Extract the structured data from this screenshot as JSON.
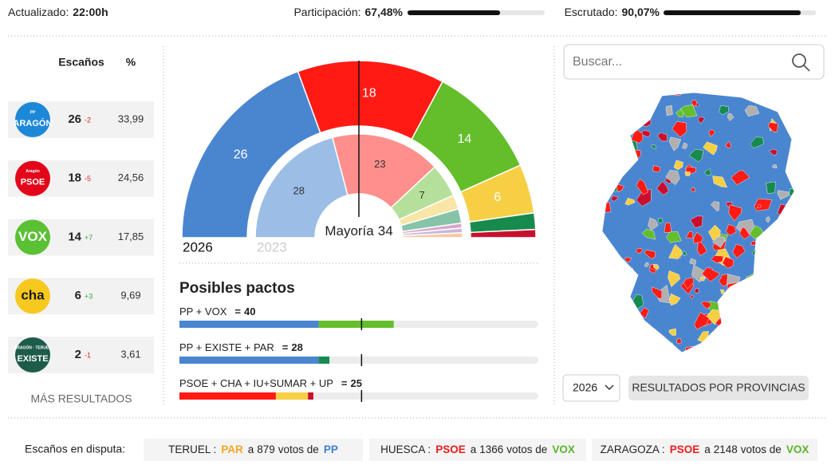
{
  "header": {
    "updated_label": "Actualizado:",
    "updated_time": "22:00h",
    "participation_label": "Participación:",
    "participation": {
      "value": 67.48,
      "label": "67,48%"
    },
    "scrutiny_label": "Escrutado:",
    "scrutiny": {
      "value": 90.07,
      "label": "90,07%"
    }
  },
  "results_table": {
    "columns": [
      "Escaños",
      "%"
    ],
    "rows": [
      {
        "logo": [
          "PP",
          "ARAGÓN"
        ],
        "logo_color": "#1e88d8",
        "logo_text_color": "#ffffff",
        "seats": 26,
        "change": -2,
        "percent": {
          "value": 33.99,
          "label": "33,99"
        }
      },
      {
        "logo": [
          "Aragón",
          "PSOE"
        ],
        "logo_color": "#e3061a",
        "logo_text_color": "#ffffff",
        "seats": 18,
        "change": -5,
        "percent": {
          "value": 24.56,
          "label": "24,56"
        }
      },
      {
        "logo": [
          "VOX"
        ],
        "logo_color": "#5ac034",
        "logo_text_color": "#ffffff",
        "seats": 14,
        "change": {
          "value": 7,
          "label": "+7"
        },
        "percent": {
          "value": 17.85,
          "label": "17,85"
        }
      },
      {
        "logo": [
          "cha"
        ],
        "logo_color": "#f7c81e",
        "logo_text_color": "#1a1a1a",
        "seats": 6,
        "change": {
          "value": 3,
          "label": "+3"
        },
        "percent": {
          "value": 9.69,
          "label": "9,69"
        }
      },
      {
        "logo": [
          "ARAGÓN · TERUEL",
          "EXISTE"
        ],
        "logo_color": "#1d5b4a",
        "logo_text_color": "#ffffff",
        "seats": 2,
        "change": -1,
        "percent": {
          "value": 3.61,
          "label": "3,61"
        }
      }
    ],
    "more": "MÁS RESULTADOS"
  },
  "hemicycle": {
    "majority_label": "Mayoría",
    "majority": 34,
    "rings": [
      {
        "year": "2026",
        "values": [
          26,
          18,
          14,
          6,
          2,
          1
        ],
        "colors": [
          "#4a86d0",
          "#ff1b14",
          "#63be2a",
          "#f6cf45",
          "#178a4d",
          "#c8102e"
        ]
      },
      {
        "year": "2023",
        "values": [
          28,
          23,
          7,
          3,
          3,
          1,
          1,
          1
        ],
        "colors": [
          "#9bbde6",
          "#ff8f8c",
          "#b5e09b",
          "#f7e6a6",
          "#86c3a9",
          "#d9a6c9",
          "#c9b6de",
          "#f7c9a0"
        ]
      }
    ]
  },
  "pacts": {
    "title": "Posibles pactos",
    "equals": "=",
    "items": [
      {
        "label": "PP + VOX",
        "total": 40,
        "segments": [
          {
            "value": 26,
            "color": "#4a86d0"
          },
          {
            "value": 14,
            "color": "#63be2a"
          }
        ]
      },
      {
        "label": "PP + EXISTE + PAR",
        "total": 28,
        "segments": [
          {
            "value": 26,
            "color": "#4a86d0"
          },
          {
            "value": 2,
            "color": "#178a4d"
          }
        ]
      },
      {
        "label": "PSOE + CHA + IU+SUMAR + UP",
        "total": 25,
        "segments": [
          {
            "value": 18,
            "color": "#ff1b14"
          },
          {
            "value": 6,
            "color": "#f6cf45"
          },
          {
            "value": 1,
            "color": "#c8102e"
          }
        ]
      }
    ]
  },
  "search": {
    "placeholder": "Buscar..."
  },
  "map_controls": {
    "year": "2026",
    "button": "RESULTADOS POR PROVINCIAS"
  },
  "footer": {
    "label": "Escaños en disputa:",
    "separator": ":",
    "prefix": "a",
    "votes_suffix": "votos de",
    "items": [
      {
        "province": "TERUEL",
        "leader": {
          "name": "PAR",
          "color": "#f5a623"
        },
        "votes": 879,
        "challenger": {
          "name": "PP",
          "color": "#3d7fd3"
        }
      },
      {
        "province": "HUESCA",
        "leader": {
          "name": "PSOE",
          "color": "#ee1c1c"
        },
        "votes": 1366,
        "challenger": {
          "name": "VOX",
          "color": "#5ab52a"
        }
      },
      {
        "province": "ZARAGOZA",
        "leader": {
          "name": "PSOE",
          "color": "#ee1c1c"
        },
        "votes": 2148,
        "challenger": {
          "name": "VOX",
          "color": "#5ab52a"
        }
      }
    ]
  }
}
